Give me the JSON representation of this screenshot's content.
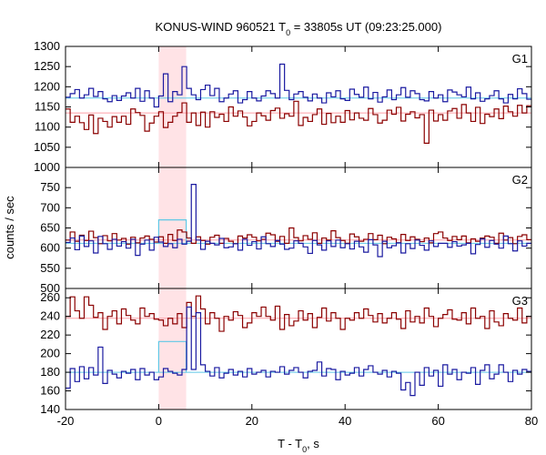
{
  "title": {
    "main": "KONUS-WIND 960521 T",
    "sub": "0",
    "rest": " = 33805s UT (09:23:25.000)"
  },
  "xlabel": {
    "main": "T - T",
    "sub": "0",
    "rest": ", s"
  },
  "ylabel": "counts / sec",
  "colors": {
    "red_series": "#8b0000",
    "blue_series": "#1a1aa0",
    "red_bg": "#ff9fa8",
    "blue_bg": "#5fc8e6",
    "highlight": "#ffe3e6",
    "highlight_box": "#5fc8e6"
  },
  "chart_data": {
    "type": "line",
    "step": true,
    "xlim": [
      -20,
      80
    ],
    "x_ticks": [
      "-20",
      "0",
      "20",
      "40",
      "60",
      "80"
    ],
    "x_tick_values": [
      -20,
      0,
      20,
      40,
      60,
      80
    ],
    "bin_width_s": 1.0,
    "x_start": -20,
    "highlight_interval": [
      0,
      5.9
    ],
    "panels": [
      {
        "label": "G1",
        "ylim": [
          1000,
          1300
        ],
        "y_ticks": [
          "1000",
          "1050",
          "1100",
          "1150",
          "1200",
          "1250",
          "1300"
        ],
        "y_tick_values": [
          1000,
          1050,
          1100,
          1150,
          1200,
          1250,
          1300
        ],
        "background": {
          "red": 1135,
          "blue": 1172
        },
        "box_level": null,
        "series": [
          {
            "name": "red",
            "values": [
              1145,
              1112,
              1127,
              1111,
              1094,
              1130,
              1084,
              1122,
              1114,
              1100,
              1126,
              1112,
              1127,
              1107,
              1145,
              1136,
              1129,
              1090,
              1110,
              1127,
              1138,
              1099,
              1112,
              1127,
              1136,
              1160,
              1112,
              1135,
              1104,
              1137,
              1100,
              1138,
              1124,
              1132,
              1114,
              1150,
              1127,
              1140,
              1125,
              1103,
              1114,
              1135,
              1128,
              1117,
              1141,
              1147,
              1122,
              1133,
              1127,
              1164,
              1104,
              1124,
              1114,
              1131,
              1145,
              1107,
              1134,
              1111,
              1127,
              1112,
              1141,
              1118,
              1135,
              1122,
              1117,
              1146,
              1131,
              1110,
              1117,
              1142,
              1132,
              1149,
              1115,
              1132,
              1138,
              1123,
              1131,
              1060,
              1142,
              1115,
              1131,
              1117,
              1140,
              1146,
              1122,
              1156,
              1135,
              1114,
              1149,
              1109,
              1132,
              1126,
              1145,
              1121,
              1152,
              1138,
              1127,
              1154,
              1135,
              1153
            ]
          },
          {
            "name": "blue",
            "values": [
              1174,
              1183,
              1193,
              1172,
              1180,
              1196,
              1176,
              1188,
              1170,
              1163,
              1178,
              1166,
              1177,
              1185,
              1172,
              1196,
              1164,
              1190,
              1172,
              1150,
              1177,
              1232,
              1163,
              1188,
              1180,
              1250,
              1196,
              1180,
              1168,
              1193,
              1204,
              1178,
              1196,
              1163,
              1172,
              1182,
              1190,
              1160,
              1168,
              1188,
              1172,
              1165,
              1177,
              1190,
              1183,
              1172,
              1256,
              1191,
              1168,
              1182,
              1188,
              1174,
              1165,
              1182,
              1172,
              1160,
              1185,
              1175,
              1190,
              1170,
              1166,
              1194,
              1181,
              1174,
              1199,
              1170,
              1186,
              1162,
              1175,
              1192,
              1168,
              1180,
              1198,
              1174,
              1190,
              1183,
              1168,
              1165,
              1188,
              1172,
              1180,
              1163,
              1192,
              1187,
              1180,
              1175,
              1199,
              1170,
              1185,
              1164,
              1170,
              1178,
              1190,
              1170,
              1160,
              1181,
              1170,
              1195,
              1183,
              1169
            ]
          }
        ]
      },
      {
        "label": "G2",
        "ylim": [
          500,
          800
        ],
        "y_ticks": [
          "500",
          "550",
          "600",
          "650",
          "700",
          "750"
        ],
        "y_tick_values": [
          500,
          550,
          600,
          650,
          700,
          750
        ],
        "background": {
          "red": 620,
          "blue": 612
        },
        "box_level": 670,
        "series": [
          {
            "name": "red",
            "values": [
              620,
              640,
              617,
              632,
              619,
              642,
              626,
              611,
              631,
              618,
              636,
              620,
              624,
              610,
              627,
              613,
              625,
              630,
              622,
              615,
              628,
              612,
              634,
              619,
              645,
              640,
              625,
              612,
              628,
              619,
              610,
              627,
              632,
              612,
              624,
              617,
              611,
              630,
              625,
              633,
              627,
              618,
              622,
              637,
              633,
              617,
              629,
              612,
              650,
              626,
              618,
              631,
              622,
              638,
              612,
              625,
              620,
              643,
              626,
              619,
              612,
              635,
              628,
              617,
              622,
              636,
              621,
              632,
              611,
              627,
              623,
              613,
              634,
              619,
              628,
              622,
              616,
              625,
              613,
              636,
              640,
              625,
              619,
              629,
              621,
              630,
              613,
              623,
              617,
              625,
              630,
              627,
              612,
              637,
              620,
              626,
              611,
              629,
              633,
              621
            ]
          },
          {
            "name": "blue",
            "values": [
              614,
              625,
              596,
              630,
              604,
              618,
              588,
              629,
              611,
              597,
              622,
              605,
              616,
              600,
              622,
              582,
              610,
              620,
              595,
              627,
              615,
              604,
              611,
              601,
              622,
              610,
              617,
              758,
              620,
              597,
              617,
              612,
              608,
              624,
              601,
              603,
              611,
              595,
              622,
              607,
              616,
              598,
              628,
              611,
              604,
              619,
              610,
              597,
              600,
              618,
              612,
              603,
              587,
              619,
              608,
              595,
              618,
              604,
              620,
              601,
              611,
              598,
              617,
              603,
              590,
              621,
              608,
              579,
              617,
              601,
              606,
              613,
              588,
              611,
              599,
              620,
              607,
              595,
              618,
              604,
              612,
              612,
              602,
              616,
              605,
              608,
              612,
              586,
              609,
              623,
              602,
              619,
              610,
              600,
              630,
              611,
              593,
              618,
              605,
              612
            ]
          }
        ]
      },
      {
        "label": "G3",
        "ylim": [
          140,
          270
        ],
        "y_ticks": [
          "140",
          "160",
          "180",
          "200",
          "220",
          "240",
          "260"
        ],
        "y_tick_values": [
          140,
          160,
          180,
          200,
          220,
          240,
          260
        ],
        "background": {
          "red": 238,
          "blue": 180
        },
        "box_level": 213,
        "series": [
          {
            "name": "red",
            "values": [
              240,
              261,
              246,
              238,
              261,
              252,
              239,
              244,
              226,
              240,
              246,
              232,
              248,
              241,
              236,
              232,
              249,
              240,
              243,
              237,
              236,
              230,
              238,
              232,
              243,
              228,
              255,
              240,
              262,
              248,
              232,
              244,
              238,
              224,
              240,
              236,
              245,
              241,
              228,
              233,
              244,
              240,
              250,
              240,
              236,
              251,
              226,
              242,
              230,
              235,
              246,
              236,
              243,
              228,
              239,
              249,
              235,
              244,
              238,
              226,
              238,
              236,
              244,
              238,
              248,
              241,
              234,
              243,
              233,
              238,
              244,
              237,
              227,
              246,
              234,
              240,
              233,
              249,
              240,
              229,
              238,
              242,
              247,
              237,
              236,
              244,
              232,
              249,
              238,
              240,
              227,
              246,
              234,
              230,
              243,
              238,
              236,
              249,
              233,
              240
            ]
          },
          {
            "name": "blue",
            "values": [
              163,
              184,
              170,
              186,
              173,
              185,
              177,
              207,
              168,
              182,
              178,
              174,
              181,
              179,
              183,
              172,
              184,
              177,
              180,
              172,
              175,
              184,
              181,
              179,
              177,
              183,
              250,
              183,
              244,
              188,
              181,
              176,
              185,
              174,
              179,
              183,
              177,
              181,
              175,
              184,
              178,
              180,
              182,
              175,
              181,
              180,
              186,
              178,
              182,
              185,
              180,
              174,
              181,
              182,
              191,
              176,
              184,
              183,
              172,
              181,
              177,
              179,
              185,
              176,
              183,
              187,
              180,
              178,
              182,
              175,
              181,
              179,
              161,
              169,
              155,
              180,
              166,
              185,
              176,
              182,
              165,
              188,
              178,
              183,
              172,
              180,
              179,
              185,
              167,
              182,
              188,
              173,
              178,
              188,
              180,
              170,
              182,
              178,
              183,
              181
            ]
          }
        ]
      }
    ]
  }
}
